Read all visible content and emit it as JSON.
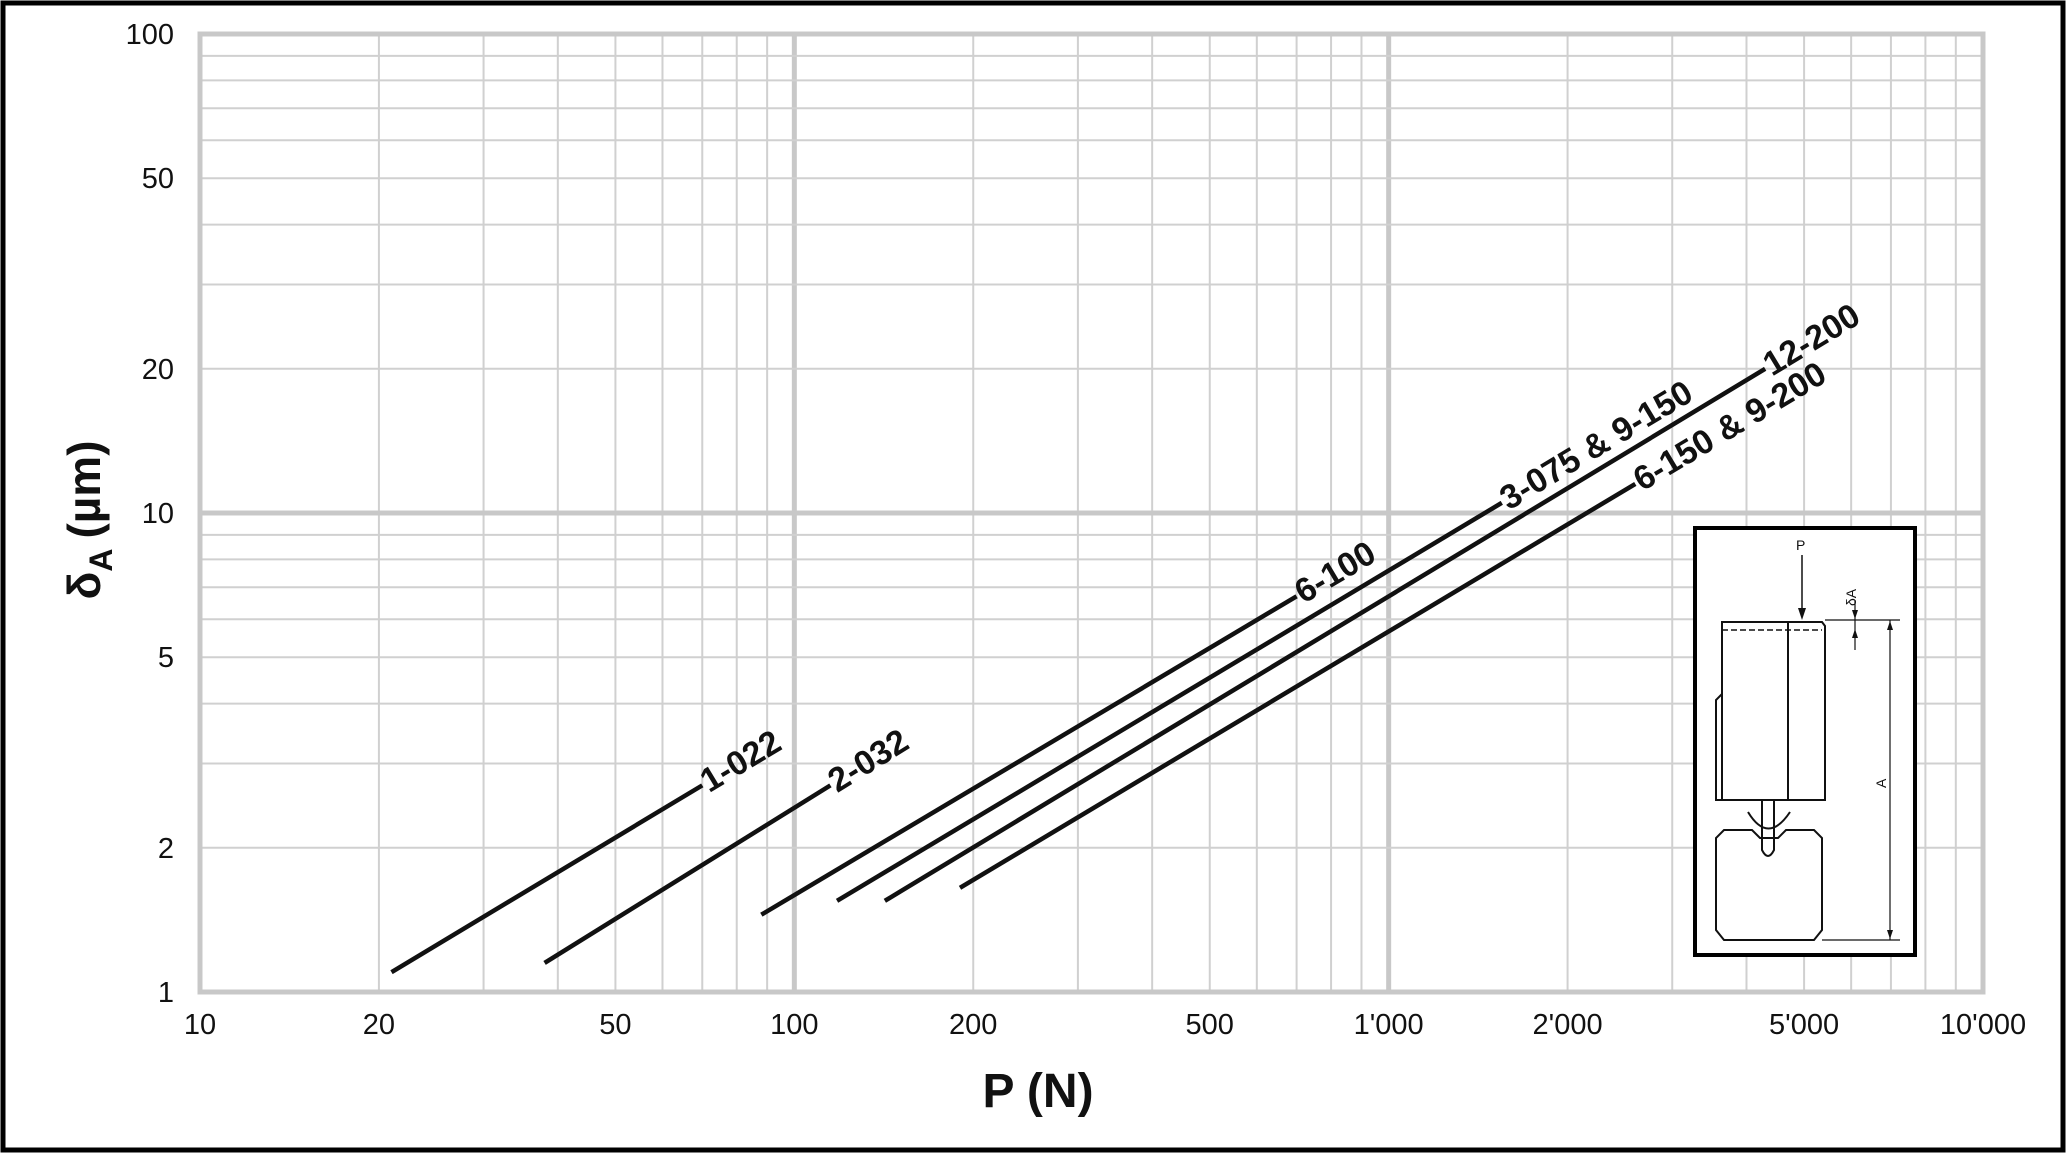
{
  "chart_data": {
    "type": "line",
    "title": "",
    "xlabel": "P (N)",
    "ylabel_main": "δ",
    "ylabel_sub": "A",
    "ylabel_unit": "(µm)",
    "x_scale": "log",
    "y_scale": "log",
    "xlim": [
      10,
      10000
    ],
    "ylim": [
      1,
      100
    ],
    "grid": true,
    "legend": "none",
    "x_ticks": [
      {
        "value": 10,
        "label": "10"
      },
      {
        "value": 20,
        "label": "20"
      },
      {
        "value": 50,
        "label": "50"
      },
      {
        "value": 100,
        "label": "100"
      },
      {
        "value": 200,
        "label": "200"
      },
      {
        "value": 500,
        "label": "500"
      },
      {
        "value": 1000,
        "label": "1'000"
      },
      {
        "value": 2000,
        "label": "2'000"
      },
      {
        "value": 5000,
        "label": "5'000"
      },
      {
        "value": 10000,
        "label": "10'000"
      }
    ],
    "y_ticks": [
      {
        "value": 1,
        "label": "1"
      },
      {
        "value": 2,
        "label": "2"
      },
      {
        "value": 5,
        "label": "5"
      },
      {
        "value": 10,
        "label": "10"
      },
      {
        "value": 20,
        "label": "20"
      },
      {
        "value": 50,
        "label": "50"
      },
      {
        "value": 100,
        "label": "100"
      }
    ],
    "series": [
      {
        "name": "1-022",
        "x": [
          21,
          70
        ],
        "y": [
          1.1,
          2.7
        ]
      },
      {
        "name": "2-032",
        "x": [
          38,
          115
        ],
        "y": [
          1.15,
          2.7
        ]
      },
      {
        "name": "6-100",
        "x": [
          88,
          700
        ],
        "y": [
          1.45,
          6.7
        ]
      },
      {
        "name": "3-075 & 9-150",
        "x": [
          118,
          1550
        ],
        "y": [
          1.55,
          10.5
        ]
      },
      {
        "name": "12-200",
        "x": [
          142,
          4300
        ],
        "y": [
          1.55,
          20
        ]
      },
      {
        "name": "6-150 & 9-200",
        "x": [
          190,
          2600
        ],
        "y": [
          1.65,
          11.5
        ]
      }
    ],
    "colors": {
      "line": "#111111",
      "grid_major": "#c8c8c8",
      "grid_minor": "#d0d0d0",
      "frame": "#000000"
    }
  },
  "inset": {
    "load_label": "P",
    "deflection_label": "δA",
    "dimension_label": "A"
  }
}
